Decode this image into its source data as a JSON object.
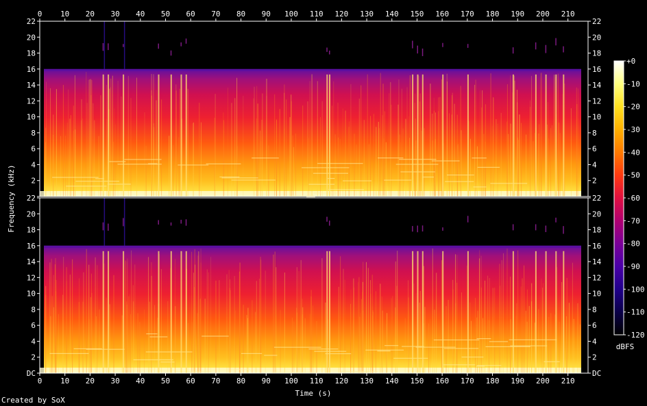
{
  "credit": "Created by SoX",
  "chart_data": {
    "type": "heatmap",
    "title": "",
    "xlabel": "Time (s)",
    "ylabel": "Frequency (kHz)",
    "xlim": [
      0,
      218
    ],
    "x_ticks": [
      0,
      10,
      20,
      30,
      40,
      50,
      60,
      70,
      80,
      90,
      100,
      110,
      120,
      130,
      140,
      150,
      160,
      170,
      180,
      190,
      200,
      210
    ],
    "ylim": [
      0,
      22
    ],
    "y_ticks": [
      0,
      2,
      4,
      6,
      8,
      10,
      12,
      14,
      16,
      18,
      20,
      22
    ],
    "y_tick_labels_top": [
      "",
      "2",
      "4",
      "6",
      "8",
      "10",
      "12",
      "14",
      "16",
      "18",
      "20",
      "22"
    ],
    "y_tick_labels_bottom": [
      "DC",
      "2",
      "4",
      "6",
      "8",
      "10",
      "12",
      "14",
      "16",
      "18",
      "20",
      "22"
    ],
    "channels": 2,
    "cutoff_khz": 16,
    "colorbar": {
      "label": "dBFS",
      "range": [
        -120,
        0
      ],
      "ticks": [
        0,
        -10,
        -20,
        -30,
        -40,
        -50,
        -60,
        -70,
        -80,
        -90,
        -100,
        -110,
        -120
      ],
      "tick_labels": [
        "+0",
        "-10",
        "-20",
        "-30",
        "-40",
        "-50",
        "-60",
        "-70",
        "-80",
        "-90",
        "-100",
        "-110",
        "-120"
      ],
      "colors": [
        "#ffffff",
        "#ffff80",
        "#ffe020",
        "#ffb000",
        "#ff7a00",
        "#ff3a10",
        "#e01040",
        "#b00070",
        "#7a0098",
        "#4a00a8",
        "#20008a",
        "#0a0048",
        "#000000"
      ]
    },
    "loud_onsets_s": [
      25,
      27,
      33,
      47,
      52,
      56,
      58,
      114,
      115,
      148,
      150,
      152,
      160,
      170,
      188,
      197,
      201,
      205,
      208
    ]
  }
}
